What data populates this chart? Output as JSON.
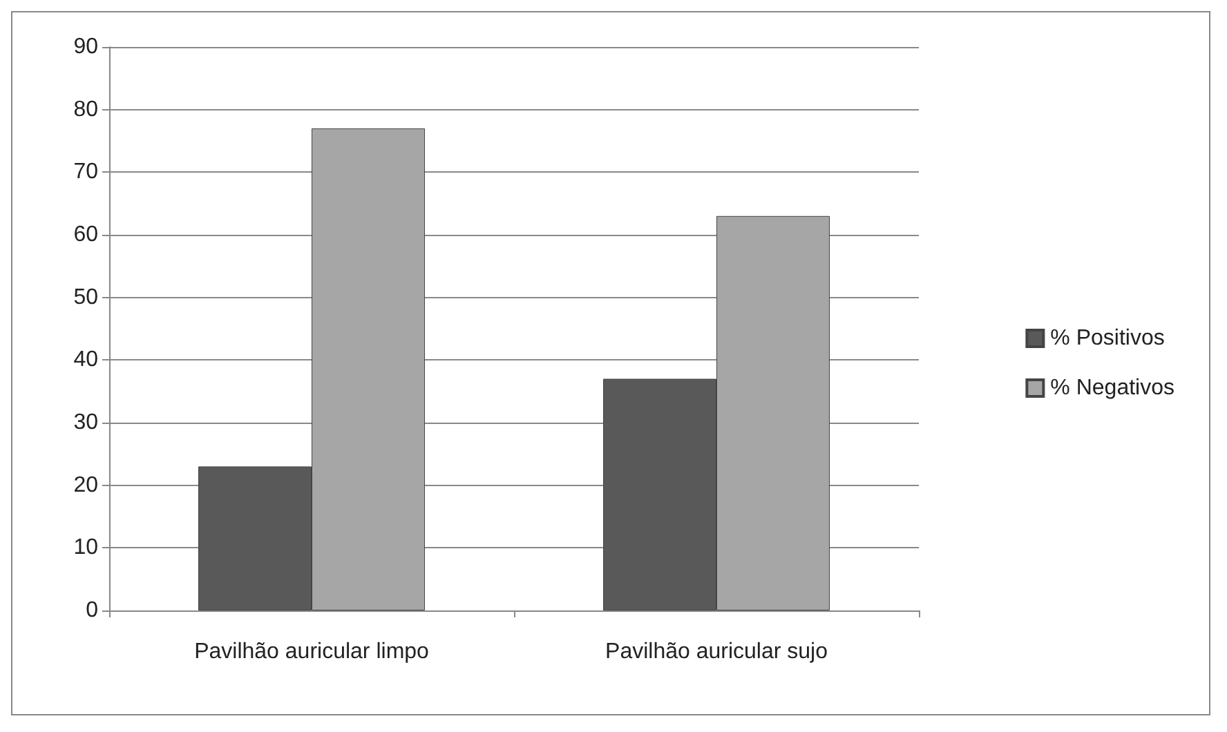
{
  "chart_data": {
    "type": "bar",
    "categories": [
      "Pavilhão auricular limpo",
      "Pavilhão auricular sujo"
    ],
    "series": [
      {
        "name": "% Positivos",
        "color": "#595959",
        "values": [
          23,
          37
        ]
      },
      {
        "name": "% Negativos",
        "color": "#a6a6a6",
        "values": [
          77,
          63
        ]
      }
    ],
    "ylim": [
      0,
      90
    ],
    "yticks": [
      0,
      10,
      20,
      30,
      40,
      50,
      60,
      70,
      80,
      90
    ],
    "grid": "y",
    "legend": "right"
  }
}
